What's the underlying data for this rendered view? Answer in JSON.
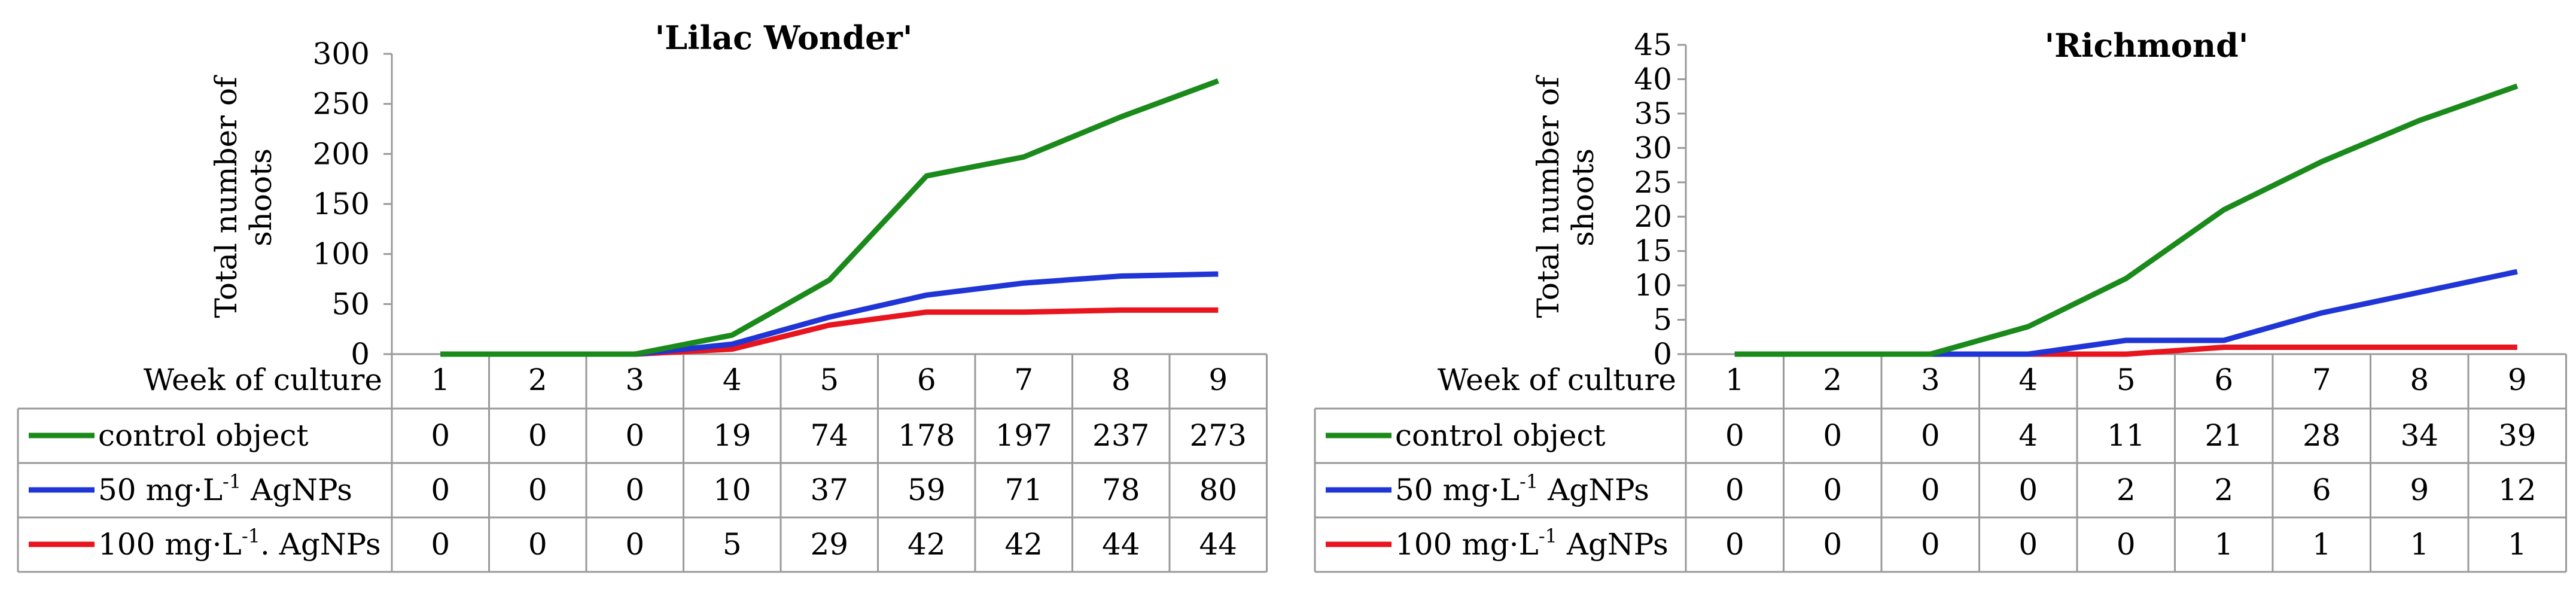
{
  "chart_data": [
    {
      "type": "line",
      "title": "'Lilac Wonder'",
      "ylabel": "Total number of shoots",
      "ylabel_lines": [
        "Total number of",
        "shoots"
      ],
      "row_header": "Week of culture",
      "categories": [
        "1",
        "2",
        "3",
        "4",
        "5",
        "6",
        "7",
        "8",
        "9"
      ],
      "ylim": [
        0,
        300
      ],
      "yticks": [
        0,
        50,
        100,
        150,
        200,
        250,
        300
      ],
      "series": [
        {
          "name": "control object",
          "label_parts": [
            "control object"
          ],
          "color": "#1a8a1a",
          "values": [
            0,
            0,
            0,
            19,
            74,
            178,
            197,
            237,
            273
          ]
        },
        {
          "name": "50 mg·L⁻¹ AgNPs",
          "label_parts": [
            "50 mg·L",
            "-1",
            "  AgNPs"
          ],
          "color": "#1f35d6",
          "values": [
            0,
            0,
            0,
            10,
            37,
            59,
            71,
            78,
            80
          ]
        },
        {
          "name": "100 mg·L⁻¹. AgNPs",
          "label_parts": [
            "100 mg·L",
            "-1",
            ". AgNPs"
          ],
          "color": "#e8141e",
          "values": [
            0,
            0,
            0,
            5,
            29,
            42,
            42,
            44,
            44
          ]
        }
      ]
    },
    {
      "type": "line",
      "title": "'Richmond'",
      "ylabel": "Total number of shoots",
      "ylabel_lines": [
        "Total number of",
        "shoots"
      ],
      "row_header": "Week of culture",
      "categories": [
        "1",
        "2",
        "3",
        "4",
        "5",
        "6",
        "7",
        "8",
        "9"
      ],
      "ylim": [
        0,
        45
      ],
      "yticks": [
        0,
        5,
        10,
        15,
        20,
        25,
        30,
        35,
        40,
        45
      ],
      "series": [
        {
          "name": "control object",
          "label_parts": [
            "control object"
          ],
          "color": "#1a8a1a",
          "values": [
            0,
            0,
            0,
            4,
            11,
            21,
            28,
            34,
            39
          ]
        },
        {
          "name": "50 mg·L⁻¹ AgNPs",
          "label_parts": [
            "50 mg·L",
            "-1",
            "  AgNPs"
          ],
          "color": "#1f35d6",
          "values": [
            0,
            0,
            0,
            0,
            2,
            2,
            6,
            9,
            12
          ]
        },
        {
          "name": "100 mg·L⁻¹ AgNPs",
          "label_parts": [
            "100 mg·L",
            "-1",
            "  AgNPs"
          ],
          "color": "#e8141e",
          "values": [
            0,
            0,
            0,
            0,
            0,
            1,
            1,
            1,
            1
          ]
        }
      ]
    }
  ]
}
